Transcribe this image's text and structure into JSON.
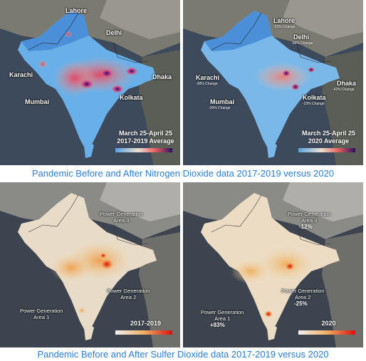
{
  "no2": {
    "caption": "Pandemic Before and After  Nitrogen Dioxide data 2017-2019 versus 2020",
    "left": {
      "period_line1": "March 25-April 25",
      "period_line2": "2017-2019 Average",
      "cities": {
        "lahore": "Lahore",
        "delhi": "Delhi",
        "karachi": "Karachi",
        "mumbai": "Mumbai",
        "kolkata": "Kolkata",
        "dhaka": "Dhaka"
      }
    },
    "right": {
      "period_line1": "March 25-April 25",
      "period_line2": "2020 Average",
      "cities": {
        "lahore": "Lahore",
        "delhi": "Delhi",
        "karachi": "Karachi",
        "mumbai": "Mumbai",
        "kolkata": "Kolkata",
        "dhaka": "Dhaka"
      },
      "changes": {
        "lahore": "-23% Change",
        "delhi": "-36% Change",
        "karachi": "-38% Change",
        "mumbai": "-30% Change",
        "kolkata": "-23% Change",
        "dhaka": "-42% Change"
      }
    },
    "colors": {
      "low": "#4a8fd8",
      "mid": "#e87a6a",
      "high": "#2a1060"
    }
  },
  "so2": {
    "caption": "Pandemic Before and After  Sulfer Dioxide data 2017-2019 versus 2020",
    "left": {
      "period": "2017-2019",
      "area3_line1": "Power Generation",
      "area3_line2": "Area 3",
      "area2_line1": "Power Generation",
      "area2_line2": "Area 2",
      "area1_line1": "Power Generation",
      "area1_line2": "Area 1"
    },
    "right": {
      "period": "2020",
      "area3_line1": "Power Generation",
      "area3_line2": "Area 3",
      "area3_change": "-12%",
      "area2_line1": "Power Generation",
      "area2_line2": "Area 2",
      "area2_change": "-25%",
      "area1_line1": "Power Generation",
      "area1_line2": "Area 1",
      "area1_change": "+83%"
    },
    "colors": {
      "low": "#e8e8e8",
      "mid": "#f0b060",
      "high": "#d81010"
    }
  }
}
